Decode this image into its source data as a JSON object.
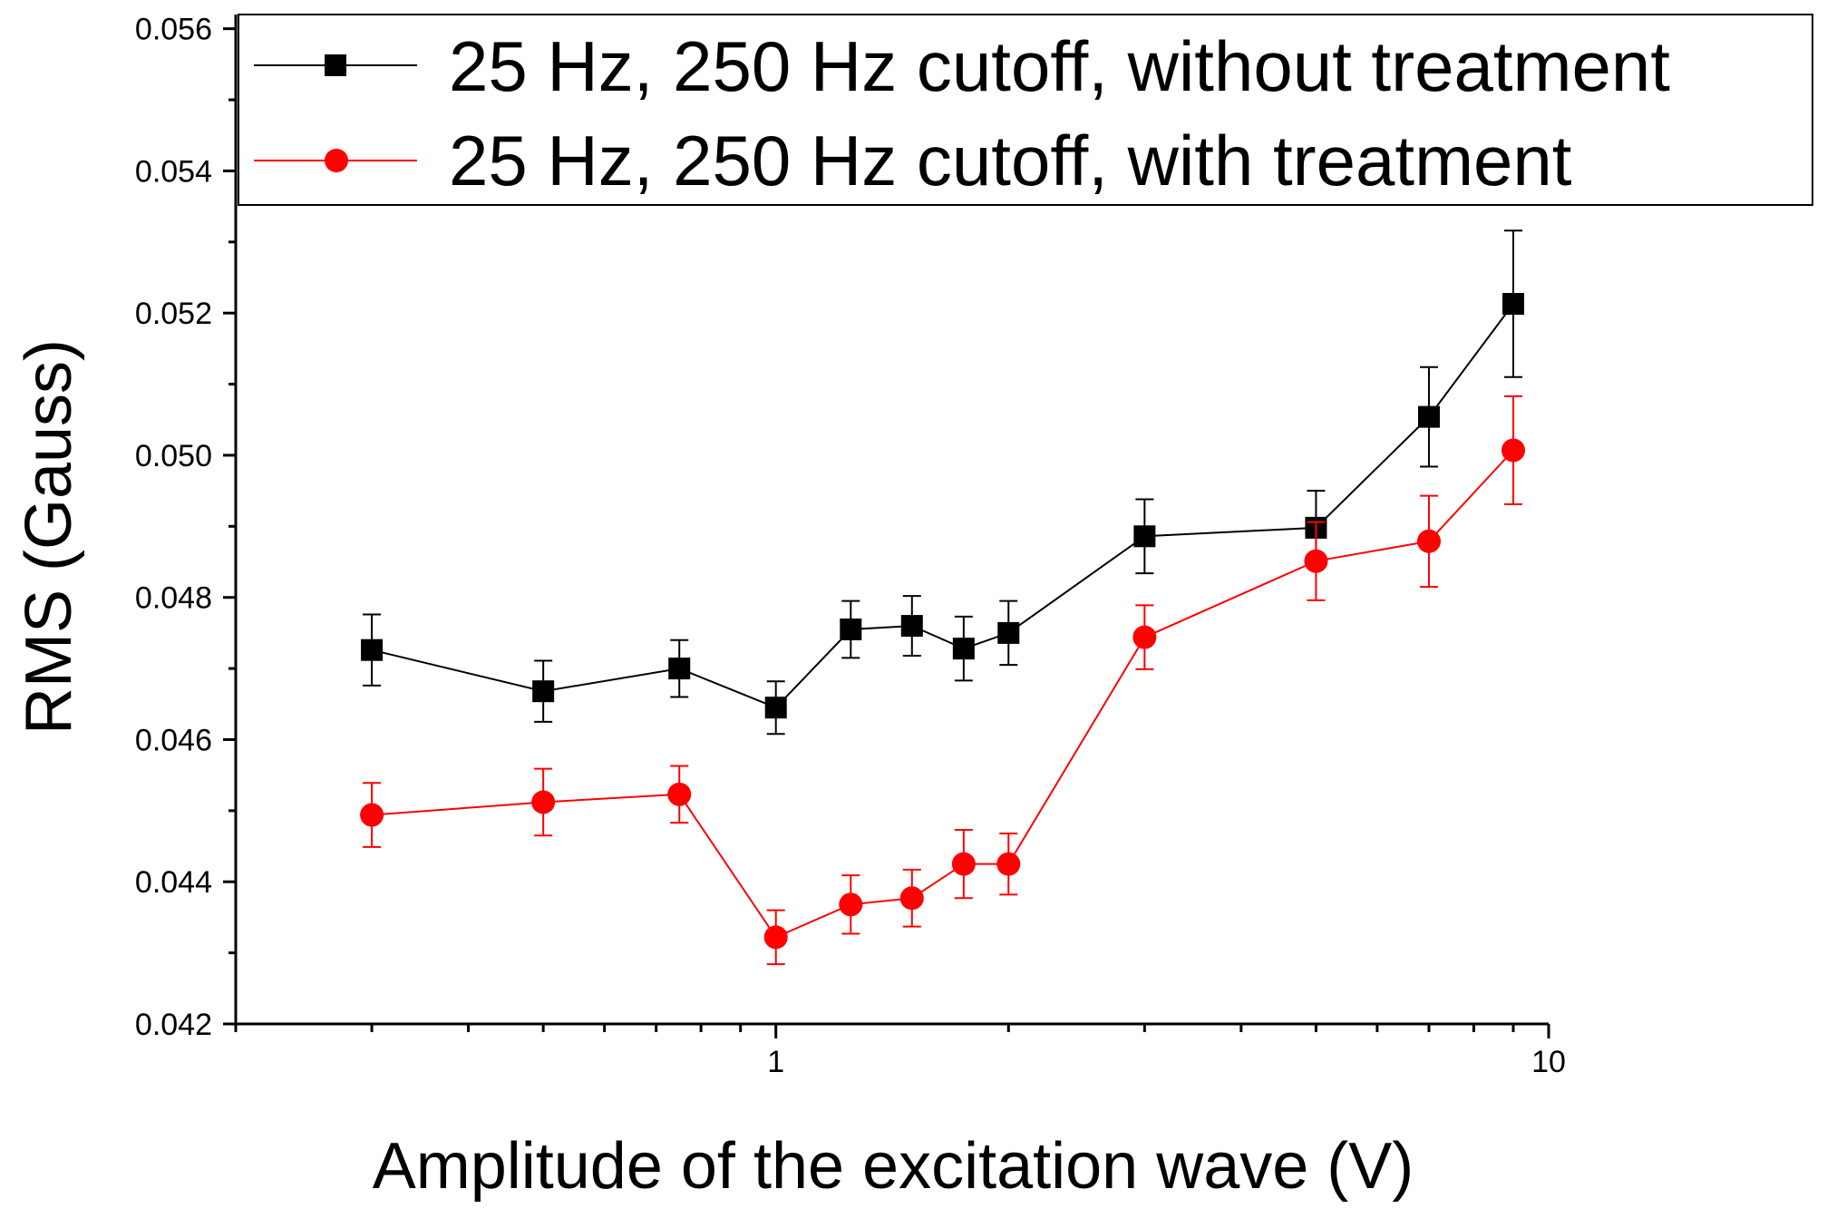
{
  "chart_data": {
    "type": "line",
    "title": "",
    "xlabel": "Amplitude of the excitation wave (V)",
    "ylabel": "RMS (Gauss)",
    "xscale": "log",
    "xlim": [
      0.2,
      10
    ],
    "ylim": [
      0.042,
      0.0562
    ],
    "xticks": [
      {
        "value": 1,
        "label": "1"
      },
      {
        "value": 10,
        "label": "10"
      }
    ],
    "yticks": [
      {
        "value": 0.042,
        "label": "0.042"
      },
      {
        "value": 0.044,
        "label": "0.044"
      },
      {
        "value": 0.046,
        "label": "0.046"
      },
      {
        "value": 0.048,
        "label": "0.048"
      },
      {
        "value": 0.05,
        "label": "0.050"
      },
      {
        "value": 0.052,
        "label": "0.052"
      },
      {
        "value": 0.054,
        "label": "0.054"
      },
      {
        "value": 0.056,
        "label": "0.056"
      }
    ],
    "legend_position": "top-right",
    "series": [
      {
        "name": "25 Hz, 250 Hz cutoff, without treatment",
        "color": "#000000",
        "marker": "square",
        "x": [
          0.3,
          0.5,
          0.75,
          1.0,
          1.25,
          1.5,
          1.75,
          2.0,
          3.0,
          5.0,
          7.0,
          9.0
        ],
        "y": [
          0.04726,
          0.04668,
          0.047,
          0.04645,
          0.04755,
          0.0476,
          0.04728,
          0.0475,
          0.04886,
          0.04898,
          0.05054,
          0.05213
        ],
        "err": [
          0.0005,
          0.00043,
          0.0004,
          0.00037,
          0.0004,
          0.00042,
          0.00045,
          0.00045,
          0.00052,
          0.00052,
          0.0007,
          0.00103
        ]
      },
      {
        "name": "25 Hz, 250 Hz cutoff, with treatment",
        "color": "#ff0000",
        "marker": "circle",
        "x": [
          0.3,
          0.5,
          0.75,
          1.0,
          1.25,
          1.5,
          1.75,
          2.0,
          3.0,
          5.0,
          7.0,
          9.0
        ],
        "y": [
          0.04494,
          0.04512,
          0.04523,
          0.04322,
          0.04368,
          0.04377,
          0.04425,
          0.04425,
          0.04744,
          0.04851,
          0.04879,
          0.05007
        ],
        "err": [
          0.00045,
          0.00047,
          0.0004,
          0.00038,
          0.00041,
          0.0004,
          0.00048,
          0.00043,
          0.00045,
          0.00055,
          0.00064,
          0.00076
        ]
      }
    ]
  }
}
